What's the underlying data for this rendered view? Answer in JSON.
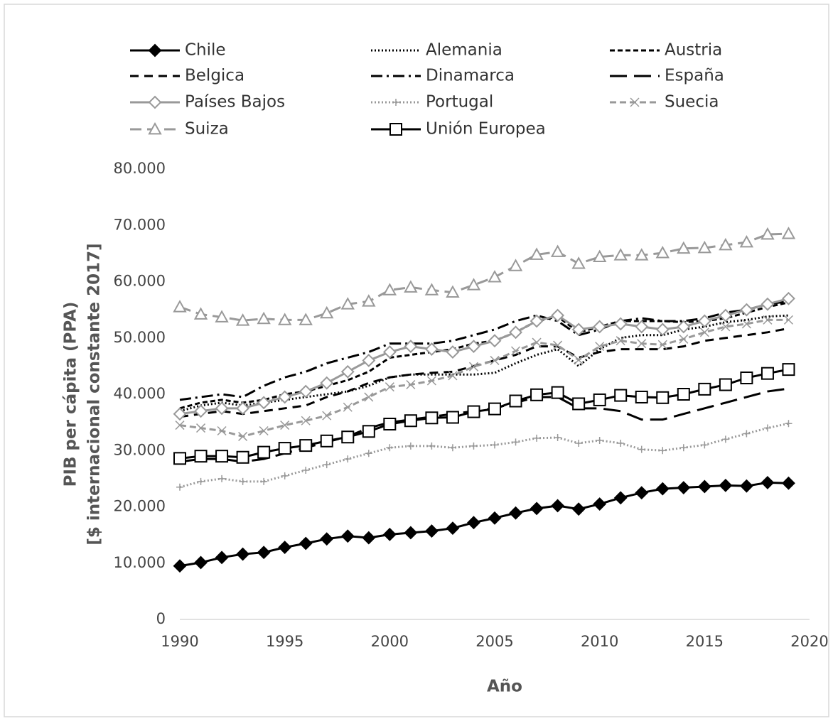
{
  "chart_data": {
    "type": "line",
    "ylabel": [
      "PIB per cápita (PPA)",
      "[$ internacional constante 2017]"
    ],
    "xlabel": "Año",
    "x": [
      1990,
      1991,
      1992,
      1993,
      1994,
      1995,
      1996,
      1997,
      1998,
      1999,
      2000,
      2001,
      2002,
      2003,
      2004,
      2005,
      2006,
      2007,
      2008,
      2009,
      2010,
      2011,
      2012,
      2013,
      2014,
      2015,
      2016,
      2017,
      2018,
      2019
    ],
    "xlim": [
      1990,
      2020
    ],
    "xticks": [
      1990,
      1995,
      2000,
      2005,
      2010,
      2015,
      2020
    ],
    "ylim": [
      0,
      80000
    ],
    "yticks": [
      0,
      {
        "value": 10000,
        "label": "10.000"
      },
      {
        "value": 20000,
        "label": "20.000"
      },
      {
        "value": 30000,
        "label": "30.000"
      },
      {
        "value": 40000,
        "label": "40.000"
      },
      {
        "value": 50000,
        "label": "50.000"
      },
      {
        "value": 60000,
        "label": "60.000"
      },
      {
        "value": 70000,
        "label": "70.000"
      },
      {
        "value": 80000,
        "label": "80.000"
      }
    ],
    "series": [
      {
        "name": "Chile",
        "color": "#000000",
        "dash": "",
        "marker": "diamond-filled",
        "values": [
          9500,
          10100,
          11000,
          11600,
          11900,
          12800,
          13500,
          14300,
          14800,
          14500,
          15100,
          15400,
          15700,
          16200,
          17200,
          18000,
          18900,
          19700,
          20200,
          19600,
          20500,
          21600,
          22500,
          23200,
          23400,
          23600,
          23800,
          23700,
          24300,
          24200
        ]
      },
      {
        "name": "Alemania",
        "color": "#000000",
        "dash": "2,3",
        "marker": "none",
        "values": [
          37000,
          38000,
          38500,
          38000,
          38500,
          39000,
          39500,
          40000,
          40500,
          41500,
          43000,
          43500,
          43500,
          43500,
          43500,
          43800,
          45500,
          47000,
          48000,
          45000,
          48000,
          50000,
          50500,
          50500,
          51500,
          52000,
          52800,
          53200,
          53800,
          54000
        ]
      },
      {
        "name": "Austria",
        "color": "#000000",
        "dash": "7,4",
        "marker": "none",
        "values": [
          37500,
          38500,
          39000,
          38500,
          39000,
          40000,
          40500,
          41500,
          42500,
          44000,
          46500,
          47000,
          47500,
          48000,
          49000,
          49500,
          51000,
          53000,
          53800,
          51000,
          52000,
          53000,
          53000,
          53000,
          52800,
          53000,
          53500,
          54500,
          55500,
          56300
        ]
      },
      {
        "name": "Belgica",
        "color": "#000000",
        "dash": "12,8",
        "marker": "none",
        "values": [
          36000,
          36500,
          37000,
          36500,
          37000,
          37500,
          38000,
          39500,
          40500,
          42000,
          43000,
          43500,
          43800,
          44000,
          45000,
          46000,
          47000,
          48500,
          48500,
          46500,
          47500,
          48000,
          48000,
          48000,
          48500,
          49500,
          50000,
          50500,
          51000,
          51700
        ]
      },
      {
        "name": "Dinamarca",
        "color": "#000000",
        "dash": "16,6,3,6",
        "marker": "none",
        "values": [
          39000,
          39500,
          40000,
          39500,
          41500,
          43000,
          44000,
          45500,
          46500,
          47500,
          49000,
          49000,
          49000,
          49500,
          50500,
          51500,
          53000,
          54000,
          53000,
          50500,
          51500,
          53000,
          53500,
          53000,
          53000,
          53500,
          54500,
          55000,
          56000,
          56500
        ]
      },
      {
        "name": "España",
        "color": "#000000",
        "dash": "24,10",
        "marker": "none",
        "values": [
          28000,
          28500,
          28500,
          28000,
          28500,
          29500,
          30500,
          31500,
          32500,
          34000,
          35000,
          35500,
          36000,
          36500,
          37000,
          37500,
          38500,
          39500,
          39500,
          37500,
          37500,
          37000,
          35500,
          35500,
          36500,
          37500,
          38500,
          39500,
          40500,
          41000
        ]
      },
      {
        "name": "Países Bajos",
        "color": "#999999",
        "dash": "",
        "marker": "diamond-open",
        "values": [
          36500,
          37000,
          37500,
          37500,
          38500,
          39500,
          40500,
          42000,
          44000,
          46000,
          47500,
          48500,
          48000,
          47500,
          48500,
          49500,
          51000,
          53000,
          54000,
          51500,
          52000,
          52500,
          52000,
          51500,
          52000,
          53000,
          54000,
          55000,
          56000,
          57000
        ]
      },
      {
        "name": "Portugal",
        "color": "#999999",
        "dash": "2,3",
        "marker": "plus",
        "values": [
          23500,
          24500,
          25000,
          24500,
          24500,
          25500,
          26500,
          27500,
          28500,
          29500,
          30500,
          30800,
          30800,
          30500,
          30800,
          31000,
          31500,
          32200,
          32300,
          31300,
          31800,
          31300,
          30200,
          30000,
          30500,
          31000,
          32000,
          33000,
          34000,
          34800
        ]
      },
      {
        "name": "Suecia",
        "color": "#999999",
        "dash": "9,5",
        "marker": "cross",
        "values": [
          34500,
          34000,
          33500,
          32500,
          33500,
          34500,
          35300,
          36200,
          37700,
          39500,
          41300,
          41700,
          42400,
          43300,
          44900,
          46000,
          47700,
          49200,
          48700,
          46100,
          48500,
          49500,
          49000,
          48800,
          49800,
          51000,
          52000,
          52500,
          53200,
          53200
        ]
      },
      {
        "name": "Suiza",
        "color": "#999999",
        "dash": "16,8",
        "marker": "triangle-open",
        "values": [
          55500,
          54200,
          53700,
          53100,
          53400,
          53200,
          53200,
          54400,
          56000,
          56500,
          58500,
          59000,
          58500,
          58100,
          59400,
          60800,
          62800,
          64800,
          65300,
          63200,
          64400,
          64700,
          64700,
          65100,
          65900,
          66000,
          66500,
          67000,
          68400,
          68500
        ]
      },
      {
        "name": "Unión Europea",
        "color": "#000000",
        "dash": "",
        "marker": "square-open",
        "values": [
          28600,
          29000,
          29000,
          28800,
          29700,
          30400,
          30900,
          31700,
          32400,
          33400,
          34700,
          35300,
          35800,
          35900,
          36900,
          37400,
          38800,
          39900,
          40300,
          38300,
          39000,
          39800,
          39500,
          39400,
          40000,
          40900,
          41700,
          42900,
          43700,
          44400
        ]
      }
    ]
  }
}
